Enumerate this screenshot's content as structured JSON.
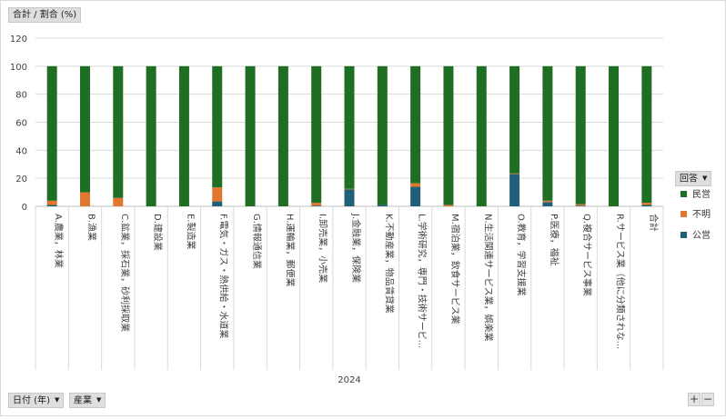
{
  "value_field_label": "合計 / 割合 (%)",
  "legend_title": "回答",
  "filters": {
    "date_label": "日付 (年)",
    "industry_label": "産業"
  },
  "zoom": {
    "in": "+",
    "out": "−"
  },
  "colors": {
    "民営": "#1e6e24",
    "不明": "#e2762e",
    "公営": "#1f5f7a",
    "grid": "#d9d9d9"
  },
  "chart_data": {
    "type": "bar",
    "stacked": true,
    "group_label": "2024",
    "categories": [
      "A.農業，林業",
      "B.漁業",
      "C.鉱業，採石業，砂利採取業",
      "D.建設業",
      "E.製造業",
      "F.電気・ガス・熱供給・水道業",
      "G.情報通信業",
      "H.運輸業，郵便業",
      "I.卸売業，小売業",
      "J.金融業，保険業",
      "K.不動産業，物品賃貸業",
      "L.学術研究，専門・技術サービ...",
      "M.宿泊業，飲食サービス業",
      "N.生活関連サービス業，娯楽業",
      "O.教育，学習支援業",
      "P.医療，福祉",
      "Q.複合サービス事業",
      "R.サービス業（他に分類されな...",
      "合計"
    ],
    "series": [
      {
        "name": "公営",
        "values": [
          1,
          0,
          0,
          0,
          0,
          3.5,
          0,
          0,
          0.5,
          12,
          1,
          14,
          0,
          0,
          23,
          3,
          0.5,
          0,
          1
        ]
      },
      {
        "name": "不明",
        "values": [
          3,
          10,
          6,
          0,
          0,
          10,
          0,
          0,
          2,
          0.5,
          0,
          2.5,
          1,
          0,
          0.5,
          1,
          1,
          0,
          1.5
        ]
      },
      {
        "name": "民営",
        "values": [
          96,
          90,
          94,
          100,
          100,
          86.5,
          100,
          100,
          97.5,
          87.5,
          99,
          83.5,
          99,
          100,
          76.5,
          96,
          98.5,
          100,
          97.5
        ]
      }
    ],
    "ylim": [
      0,
      120
    ],
    "yticks": [
      0,
      20,
      40,
      60,
      80,
      100,
      120
    ],
    "grid": true,
    "legend": {
      "title": "回答",
      "order": [
        "民営",
        "不明",
        "公営"
      ],
      "placement": "right"
    }
  }
}
